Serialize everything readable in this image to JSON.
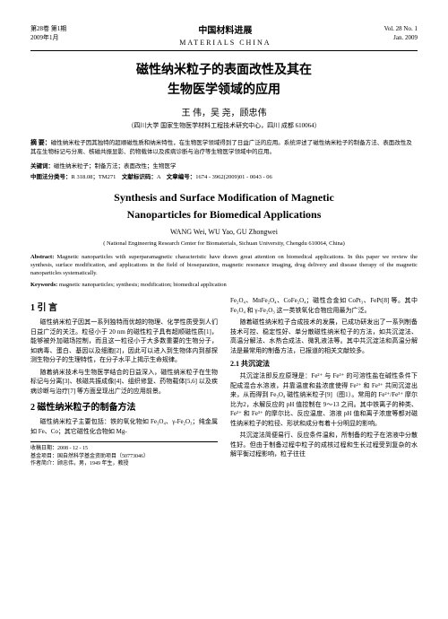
{
  "header": {
    "vol_cn": "第28卷 第1期",
    "date_cn": "2009年1月",
    "journal_cn": "中国材料进展",
    "journal_en": "MATERIALS CHINA",
    "vol_en": "Vol. 28  No. 1",
    "date_en": "Jan. 2009"
  },
  "title": {
    "cn1": "磁性纳米粒子的表面改性及其在",
    "cn2": "生物医学领域的应用",
    "en1": "Synthesis and Surface Modification of Magnetic",
    "en2": "Nanoparticles for Biomedical Applications"
  },
  "authors": {
    "cn": "王  伟，吴  尧，顾忠伟",
    "en": "WANG Wei, WU Yao, GU Zhongwei"
  },
  "affil": {
    "cn": "（四川大学 国家生物医学材料工程技术研究中心，四川  成都  610064）",
    "en": "( National Engineering Research Center for Biomaterials, Sichuan University, Chengdu 610064, China)"
  },
  "abstract": {
    "cn_label": "摘  要：",
    "cn": "磁性纳米粒子因其独特的超顺磁性质和纳米特性，在生物医学领域得到了日益广泛的应用。系统评述了磁性纳米粒子的制备方法、表面改性及其在生物标记与分离、核磁共振显影、药物载体以及疾病诊断与治疗等生物医学领域中的应用。",
    "kw_cn_label": "关键词：",
    "kw_cn": "磁性纳米粒子；制备方法；表面改性；生物医学",
    "cls_label": "中图法分类号：",
    "cls": "R 318.08；TM271",
    "doc_label": "文献标识码：",
    "doc": "A",
    "art_label": "文章编号：",
    "art": "1674 - 3962(2009)01 - 0043 - 06",
    "en_label": "Abstract:",
    "en": "Magnetic nanoparticles with superparamagnetic characteristic have drawn great attention on biomedical applications. In this paper we review the synthesis, surface modification, and applications in the field of bioseparation, magnetic resonance imaging, drug delivery and disease therapy of the magnetic nanoparticles systematically.",
    "kw_en_label": "Keywords:",
    "kw_en": "magnetic nanoparticles; synthesis; modification; biomedical application"
  },
  "body": {
    "s1": "1  引  言",
    "p1": "磁性纳米粒子因其一系列独特而优越的物理、化学性质受到人们日益广泛的关注。粒径小于 20 nm 的磁性粒子具有超顺磁性质[1]，能够被外加磁场控制，而且这一粒径小于大多数重要的生物分子，如病毒、蛋白、基因以及细胞[2]，因此可以进入到生物体内到部探测生物分子的生理特性，在分子水平上揭示生命规律。",
    "p2": "随着纳米技术与生物医学结合的日益深入，磁性纳米粒子在生物标记与分离[3]、核磁共振成像[4]、组织修复、药物载体[5,6] 以及疾病诊断与治疗[7] 等方面呈现出广泛的应用前景。",
    "s2": "2  磁性纳米粒子的制备方法",
    "p3": "磁性纳米粒子主要包括：铁的氧化物如 Fe₃O₄、γ-Fe₂O₃；纯金属如 Fe、Co；其它磁性化合物如 Mg-",
    "r1": "Fe₂O₄、MnFe₂O₄、CoFe₂O₄；磁性合金如 CoPt₃、FePt[8] 等。其中 Fe₃O₄ 和 γ-Fe₂O₃ 这一类铁氧化合物应用最为广泛。",
    "r2": "随着磁性纳米粒子合成技术的发展，已成功研发出了一系列制备技术可控、稳定性好、单分散磁性纳米粒子的方法，如共沉淀法、高温分解法、水热合成法、微乳液法等。其中共沉淀法和高温分解法是最常用的制备方法，已报道的相关文献较多。",
    "sub1": "2.1  共沉淀法",
    "r3": "共沉淀法即反应原理是：Fe²⁺ 与 Fe³⁺ 的可溶性盐在碱性条件下配成混合水溶液，并靠温度和盐浓度使得 Fe²⁺ 和 Fe³⁺ 共同沉淀出来，从而得到 Fe₃O₄ 磁性纳米粒子[9]（图1）。常用的 Fe²⁺/Fe³⁺ 摩尔比为2，水解反应的 pH 值控制在 9～13 之间。其中铁离子的种类、Fe²⁺ 和 Fe³⁺ 的摩尔比、反应温度、溶液 pH 值和离子浓度等都对磁性纳米粒子的粒径、形状和成分有着十分明显的影响。",
    "r4": "共沉淀法简便易行、反应条件温和，所制备的粒子在溶液中分散性好。但由于制备过程中粒子的成核过程和生长过程受到复杂的水解平衡过程影响，粒子往往"
  },
  "footer": {
    "recv": "收稿日期：2008 - 12 - 15",
    "fund": "基金项目：国自然科学基金资助项目（50773046）",
    "auth": "作者简介：顾忠伟，男，1949 年生，教授"
  }
}
